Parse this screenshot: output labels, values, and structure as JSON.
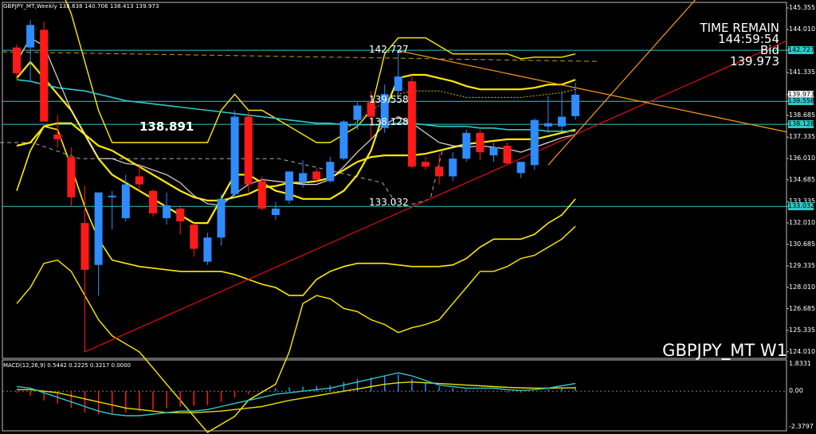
{
  "window": {
    "header": "GBPJPY_MT,Weekly  138.638 140.706 138.413 139.973",
    "symbol_label": "GBPJPY_MT  W1"
  },
  "info": {
    "time_remain_label": "TIME REMAIN",
    "time_remain_value": "144:59:54",
    "bid_label": "Bid",
    "bid_value": "139.973"
  },
  "annotations": {
    "level_high": "142.727",
    "level_mid1": "139.558",
    "level_mid2": "138.128",
    "level_low": "133.032",
    "big_label": "138.891"
  },
  "colors": {
    "background": "#000000",
    "bull": "#2f8cff",
    "bear": "#ff1a1a",
    "bollinger": "#ffea00",
    "level_line": "#2fc8c8",
    "trend_up": "#e01010",
    "channel": "#ff9a1a",
    "ma_fast": "#e8d6d6",
    "ma_slow": "#2fc8c8",
    "macd_signal": "#e8e000"
  },
  "price_axis": {
    "ticks": [
      "145.355",
      "144.010",
      "142.727",
      "141.335",
      "139.973",
      "139.558",
      "138.685",
      "138.128",
      "137.335",
      "136.010",
      "134.685",
      "133.335",
      "133.032",
      "132.010",
      "130.685",
      "129.335",
      "128.010",
      "126.685",
      "125.335",
      "124.010"
    ]
  },
  "macd_axis": {
    "ticks": [
      "1.8331",
      "0.00",
      "-2.3797"
    ]
  },
  "chart_data": [
    {
      "type": "candlestick",
      "title": "GBPJPY_MT,Weekly",
      "timeframe": "W1",
      "ylim": [
        123.6,
        145.7
      ],
      "candles": [
        {
          "o": 142.9,
          "h": 143.1,
          "l": 140.9,
          "c": 141.3
        },
        {
          "o": 142.9,
          "h": 144.6,
          "l": 140.8,
          "c": 144.3
        },
        {
          "o": 144.0,
          "h": 144.5,
          "l": 138.3,
          "c": 138.3
        },
        {
          "o": 137.5,
          "h": 138.7,
          "l": 136.7,
          "c": 137.2
        },
        {
          "o": 136.1,
          "h": 136.7,
          "l": 133.0,
          "c": 133.6
        },
        {
          "o": 132.0,
          "h": 134.3,
          "l": 124.0,
          "c": 129.1
        },
        {
          "o": 129.4,
          "h": 133.8,
          "l": 127.5,
          "c": 133.9
        },
        {
          "o": 133.6,
          "h": 134.0,
          "l": 131.6,
          "c": 133.7
        },
        {
          "o": 132.3,
          "h": 135.0,
          "l": 132.1,
          "c": 134.4
        },
        {
          "o": 134.9,
          "h": 135.6,
          "l": 134.0,
          "c": 134.4
        },
        {
          "o": 134.0,
          "h": 134.1,
          "l": 132.4,
          "c": 132.6
        },
        {
          "o": 132.3,
          "h": 133.9,
          "l": 131.9,
          "c": 133.1
        },
        {
          "o": 132.9,
          "h": 133.1,
          "l": 131.3,
          "c": 132.1
        },
        {
          "o": 131.9,
          "h": 132.0,
          "l": 129.9,
          "c": 130.4
        },
        {
          "o": 129.6,
          "h": 131.4,
          "l": 129.4,
          "c": 131.1
        },
        {
          "o": 131.1,
          "h": 133.8,
          "l": 130.6,
          "c": 133.5
        },
        {
          "o": 133.8,
          "h": 139.0,
          "l": 133.6,
          "c": 138.6
        },
        {
          "o": 138.6,
          "h": 138.9,
          "l": 133.8,
          "c": 134.4
        },
        {
          "o": 134.6,
          "h": 134.9,
          "l": 132.8,
          "c": 132.9
        },
        {
          "o": 132.5,
          "h": 133.3,
          "l": 132.2,
          "c": 132.9
        },
        {
          "o": 133.4,
          "h": 135.2,
          "l": 133.2,
          "c": 135.2
        },
        {
          "o": 134.5,
          "h": 135.9,
          "l": 134.2,
          "c": 135.1
        },
        {
          "o": 135.2,
          "h": 135.4,
          "l": 134.5,
          "c": 134.7
        },
        {
          "o": 134.6,
          "h": 136.1,
          "l": 134.5,
          "c": 135.8
        },
        {
          "o": 136.0,
          "h": 138.4,
          "l": 135.9,
          "c": 138.3
        },
        {
          "o": 138.4,
          "h": 139.5,
          "l": 137.8,
          "c": 139.3
        },
        {
          "o": 139.5,
          "h": 140.2,
          "l": 137.2,
          "c": 138.6
        },
        {
          "o": 137.9,
          "h": 140.6,
          "l": 137.6,
          "c": 140.0
        },
        {
          "o": 140.2,
          "h": 142.7,
          "l": 140.0,
          "c": 141.1
        },
        {
          "o": 140.8,
          "h": 141.2,
          "l": 135.4,
          "c": 135.5
        },
        {
          "o": 135.8,
          "h": 136.1,
          "l": 135.3,
          "c": 135.5
        },
        {
          "o": 135.5,
          "h": 136.3,
          "l": 134.4,
          "c": 134.9
        },
        {
          "o": 134.9,
          "h": 136.4,
          "l": 134.6,
          "c": 136.0
        },
        {
          "o": 136.0,
          "h": 137.8,
          "l": 135.8,
          "c": 137.6
        },
        {
          "o": 137.6,
          "h": 137.8,
          "l": 135.9,
          "c": 136.4
        },
        {
          "o": 136.2,
          "h": 137.0,
          "l": 135.8,
          "c": 136.7
        },
        {
          "o": 136.8,
          "h": 137.0,
          "l": 135.6,
          "c": 135.7
        },
        {
          "o": 135.1,
          "h": 135.8,
          "l": 134.8,
          "c": 135.8
        },
        {
          "o": 135.6,
          "h": 138.5,
          "l": 135.3,
          "c": 138.4
        },
        {
          "o": 138.0,
          "h": 139.9,
          "l": 137.6,
          "c": 138.2
        },
        {
          "o": 138.0,
          "h": 140.2,
          "l": 137.7,
          "c": 138.6
        },
        {
          "o": 138.638,
          "h": 140.706,
          "l": 138.413,
          "c": 139.973
        }
      ],
      "horizontal_levels": [
        142.727,
        139.558,
        138.128,
        133.032
      ],
      "bollinger_bands": {
        "upper_3": [
          150,
          151,
          148,
          147,
          145,
          142,
          139,
          137,
          137,
          137,
          137,
          137,
          137,
          137,
          137,
          139,
          140,
          139,
          139,
          138.5,
          138,
          137.5,
          137,
          137,
          137.5,
          138,
          139,
          142.5,
          143.5,
          143.5,
          143.5,
          143,
          142.5,
          142.5,
          142.5,
          142.5,
          142.5,
          142.2,
          142.3,
          142.3,
          142.3,
          142.5
        ],
        "upper_2": [
          141,
          142,
          141,
          140,
          139,
          137.5,
          136,
          135,
          134.5,
          134,
          133.5,
          133,
          132.5,
          132,
          132,
          133.5,
          135,
          135,
          134.5,
          134,
          133.8,
          133.5,
          133.5,
          133.5,
          134,
          135,
          136.5,
          139,
          141,
          141.2,
          141.2,
          141,
          140.8,
          140.5,
          140.3,
          140.3,
          140.3,
          140.3,
          140.4,
          140.6,
          140.6,
          140.9
        ],
        "upper_1": [
          null,
          null,
          null,
          null,
          null,
          null,
          null,
          null,
          null,
          null,
          null,
          null,
          null,
          null,
          null,
          null,
          null,
          null,
          null,
          null,
          null,
          null,
          null,
          null,
          137.8,
          138.3,
          139,
          139.5,
          140,
          140.2,
          140.2,
          140.2,
          140.0,
          139.8,
          139.8,
          139.8,
          139.8,
          139.8,
          139.9,
          140.0,
          140.1,
          140.3
        ],
        "lower_1": [
          136.8,
          137.0,
          138.0,
          138.2,
          138.2,
          137.5,
          136.8,
          136.5,
          136,
          135.5,
          135,
          134.5,
          134,
          133.6,
          133.4,
          133.4,
          133.6,
          133.8,
          134.2,
          134.3,
          134.5,
          134.5,
          134.6,
          134.8,
          135.3,
          135.8,
          136.1,
          136.2,
          136.2,
          136.2,
          136.3,
          136.5,
          136.7,
          136.9,
          137.0,
          137.1,
          137.2,
          137.2,
          137.2,
          137.4,
          137.6,
          137.8
        ],
        "lower_2": [
          134,
          136.5,
          138,
          137.8,
          135.5,
          133,
          131,
          129.7,
          129.5,
          129.3,
          129.2,
          129.1,
          129,
          129,
          129,
          129,
          128.8,
          128.5,
          128.2,
          128,
          127.5,
          127.5,
          128.5,
          129,
          129.3,
          129.5,
          129.5,
          129.5,
          129.4,
          129.3,
          129.3,
          129.3,
          129.4,
          129.8,
          130.5,
          131,
          131,
          131,
          131.3,
          132,
          132.5,
          133.5
        ],
        "lower_3": [
          127,
          128,
          129.5,
          129.7,
          129,
          127.5,
          126,
          125,
          124.5,
          124,
          123,
          122,
          121,
          120,
          119,
          119.5,
          120,
          121,
          121.5,
          122,
          124,
          127,
          127.5,
          127.3,
          126.7,
          126.5,
          126,
          125.7,
          125.2,
          125.5,
          125.7,
          126,
          127,
          128,
          129,
          129,
          129.3,
          129.8,
          130,
          130.5,
          131,
          131.8
        ]
      },
      "moving_averages": {
        "ma_fast": [
          142,
          143.5,
          143,
          141,
          139,
          137.5,
          136,
          136,
          135.7,
          135.6,
          135.3,
          135,
          134.5,
          133.7,
          133.2,
          133.1,
          133.8,
          134.4,
          134.7,
          134.6,
          134.5,
          134.4,
          134.4,
          134.7,
          135.5,
          136.4,
          137.2,
          138.1,
          138.6,
          138.2,
          137.6,
          137,
          136.8,
          136.7,
          136.8,
          136.7,
          136.6,
          136.4,
          136.7,
          137.0,
          137.3,
          137.5
        ],
        "ma_slow": [
          140.9,
          140.8,
          140.6,
          140.4,
          140.3,
          140.2,
          140,
          139.8,
          139.6,
          139.5,
          139.4,
          139.3,
          139.2,
          139.1,
          139,
          138.9,
          138.8,
          138.7,
          138.6,
          138.5,
          138.4,
          138.3,
          138.2,
          138.2,
          138.1,
          138.1,
          138.1,
          138.1,
          138.2,
          138.2,
          138.1,
          138.0,
          138.0,
          138.0,
          137.9,
          137.9,
          137.8,
          137.8,
          137.8,
          137.7,
          137.7,
          137.7
        ]
      },
      "trendlines": [
        {
          "name": "support",
          "from": {
            "bar": 5,
            "price": 124.0
          },
          "to": {
            "bar": 41,
            "price": 137.5
          },
          "extends": true
        },
        {
          "name": "channel-top",
          "from": {
            "bar": 28,
            "price": 142.7
          },
          "to": {
            "bar": 41,
            "price": 140.4
          },
          "extends": true
        },
        {
          "name": "channel-diag",
          "from": {
            "bar": 39,
            "price": 135.6
          },
          "to": {
            "bar": 41,
            "price": 137.5
          },
          "extends": true
        }
      ]
    },
    {
      "type": "bar",
      "title": "MACD(12,26,9) 0.5442 0.2225 0.3217 0.0000",
      "ylim": [
        -2.3797,
        1.8331
      ],
      "histogram": [
        -0.1,
        -0.3,
        -0.6,
        -0.8,
        -1.1,
        -1.4,
        -1.5,
        -1.5,
        -1.4,
        -1.3,
        -1.2,
        -1.1,
        -1.0,
        -0.95,
        -0.9,
        -0.7,
        -0.4,
        -0.2,
        0.05,
        0.2,
        0.25,
        0.3,
        0.35,
        0.4,
        0.6,
        0.8,
        0.9,
        1.0,
        1.1,
        0.8,
        0.6,
        0.3,
        0.2,
        0.1,
        0.0,
        -0.05,
        -0.1,
        -0.1,
        0.0,
        0.1,
        0.2,
        0.3
      ],
      "macd": [
        0.3,
        0.2,
        -0.1,
        -0.4,
        -0.7,
        -1.0,
        -1.3,
        -1.5,
        -1.6,
        -1.6,
        -1.5,
        -1.4,
        -1.3,
        -1.3,
        -1.2,
        -1.0,
        -0.8,
        -0.6,
        -0.4,
        -0.2,
        -0.1,
        0.0,
        0.1,
        0.2,
        0.4,
        0.6,
        0.8,
        1.0,
        1.2,
        1.0,
        0.7,
        0.4,
        0.3,
        0.2,
        0.2,
        0.2,
        0.1,
        0.05,
        0.1,
        0.2,
        0.35,
        0.5
      ],
      "signal": [
        0.1,
        0.1,
        0.0,
        -0.1,
        -0.3,
        -0.5,
        -0.7,
        -0.9,
        -1.1,
        -1.2,
        -1.3,
        -1.4,
        -1.4,
        -1.4,
        -1.35,
        -1.3,
        -1.2,
        -1.1,
        -1.0,
        -0.8,
        -0.6,
        -0.45,
        -0.3,
        -0.15,
        0.0,
        0.15,
        0.3,
        0.45,
        0.55,
        0.6,
        0.55,
        0.5,
        0.45,
        0.4,
        0.35,
        0.3,
        0.25,
        0.22,
        0.2,
        0.2,
        0.21,
        0.22
      ]
    }
  ]
}
